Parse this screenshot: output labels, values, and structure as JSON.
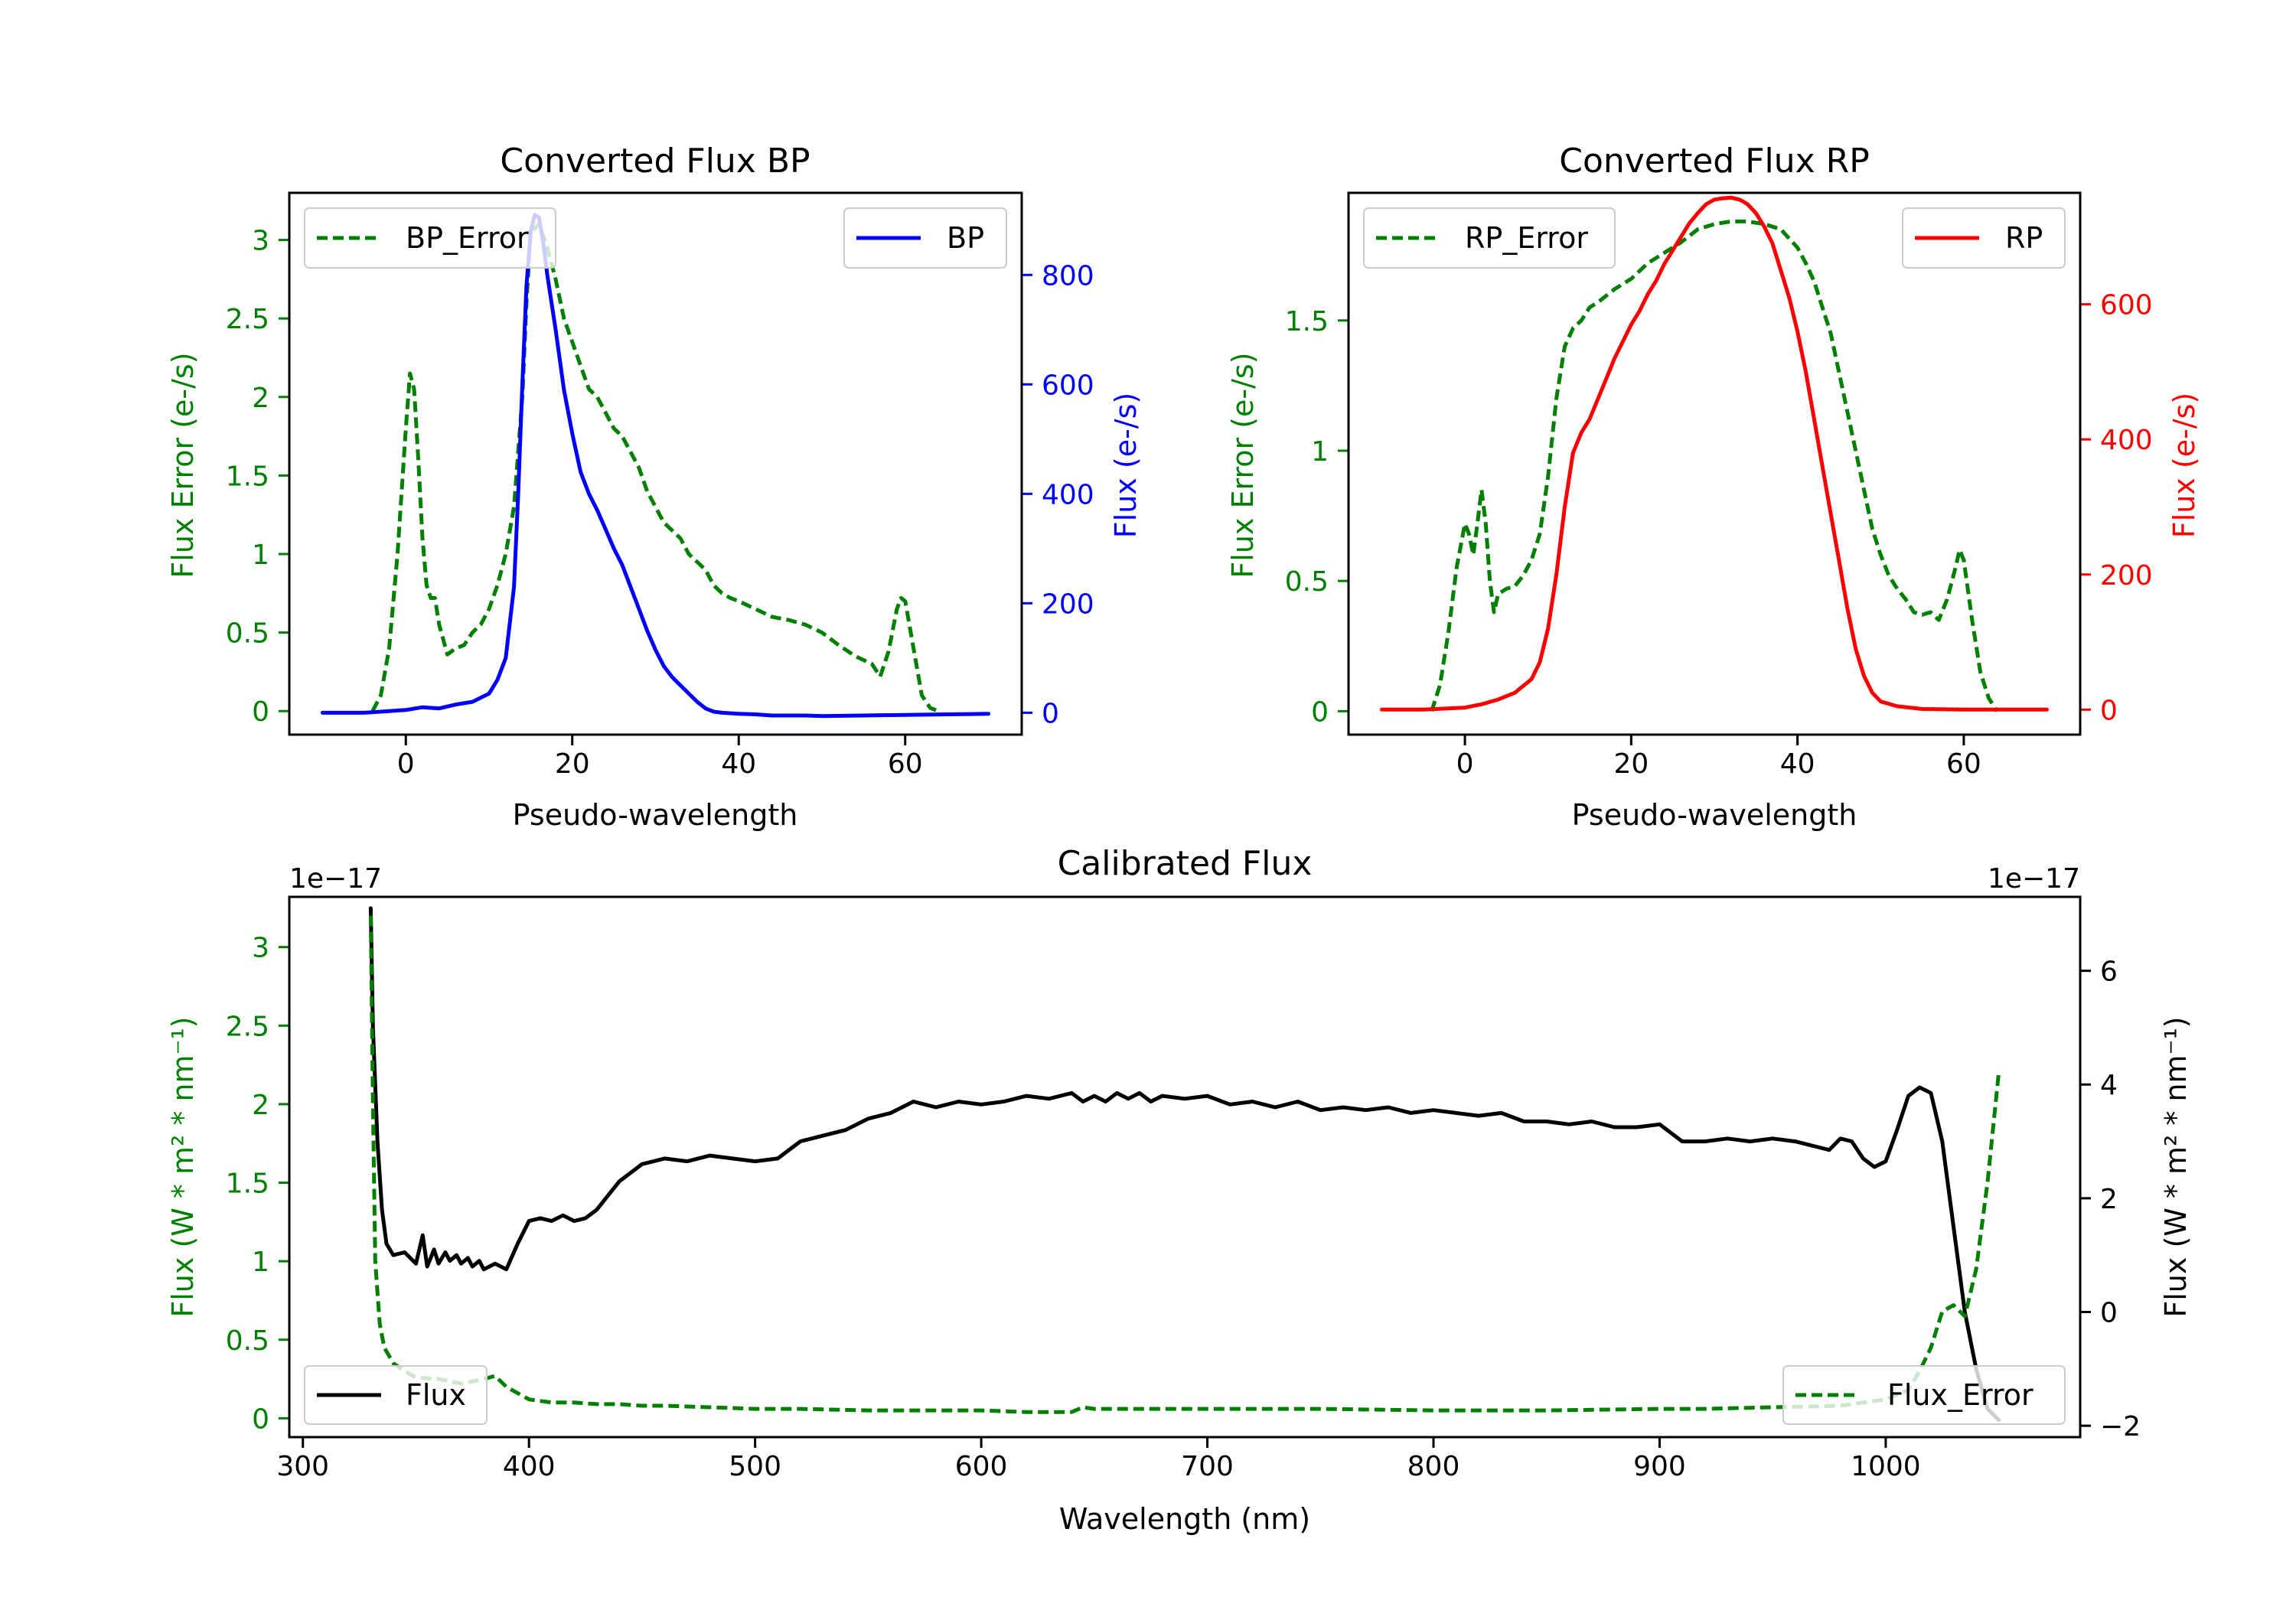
{
  "chart_data": [
    {
      "type": "line",
      "title": "Converted Flux BP",
      "xlabel": "Pseudo-wavelength",
      "ylabel": "Flux Error (e-/s)",
      "y2label": "Flux (e-/s)",
      "xlim": [
        -14,
        74
      ],
      "ylim": [
        -0.15,
        3.3
      ],
      "y2lim": [
        -40,
        950
      ],
      "xticks": [
        0,
        20,
        40,
        60
      ],
      "yticks": [
        0.0,
        0.5,
        1.0,
        1.5,
        2.0,
        2.5,
        3.0
      ],
      "y2ticks": [
        0,
        200,
        400,
        600,
        800
      ],
      "series": [
        {
          "name": "BP_Error",
          "axis": "left",
          "color": "#008000",
          "style": "dashed",
          "x": [
            -4,
            -3,
            -2,
            -1,
            0,
            0.5,
            1,
            1.5,
            2,
            2.5,
            3,
            3.5,
            4,
            5,
            6,
            7,
            8,
            9,
            10,
            11,
            12,
            13,
            14,
            14.5,
            15,
            16,
            17,
            18,
            19,
            20,
            21,
            22,
            23,
            24,
            25,
            26,
            27,
            28,
            29,
            30,
            31,
            32,
            33,
            34,
            35,
            36,
            37,
            38,
            39,
            40,
            42,
            44,
            46,
            48,
            50,
            52,
            54,
            56,
            57,
            58,
            59,
            59.5,
            60,
            61,
            62,
            63,
            64
          ],
          "y": [
            0.0,
            0.1,
            0.4,
            1.0,
            1.8,
            2.15,
            2.05,
            1.6,
            1.1,
            0.8,
            0.72,
            0.72,
            0.55,
            0.36,
            0.4,
            0.42,
            0.5,
            0.55,
            0.65,
            0.8,
            1.0,
            1.3,
            2.0,
            2.6,
            3.05,
            3.1,
            2.95,
            2.75,
            2.5,
            2.35,
            2.2,
            2.05,
            2.0,
            1.9,
            1.8,
            1.75,
            1.65,
            1.55,
            1.4,
            1.3,
            1.2,
            1.15,
            1.1,
            1.0,
            0.95,
            0.9,
            0.8,
            0.75,
            0.72,
            0.7,
            0.65,
            0.6,
            0.58,
            0.55,
            0.5,
            0.42,
            0.35,
            0.3,
            0.22,
            0.38,
            0.65,
            0.72,
            0.7,
            0.4,
            0.1,
            0.02,
            0.0
          ]
        },
        {
          "name": "BP",
          "axis": "right",
          "color": "#0000ff",
          "style": "solid",
          "x": [
            -10,
            -5,
            0,
            2,
            4,
            6,
            8,
            10,
            11,
            12,
            13,
            13.5,
            14,
            14.5,
            15,
            15.5,
            16,
            16.5,
            17,
            18,
            19,
            20,
            21,
            22,
            23,
            24,
            25,
            26,
            27,
            28,
            29,
            30,
            31,
            32,
            33,
            34,
            35,
            36,
            37,
            38,
            40,
            42,
            44,
            46,
            48,
            50,
            55,
            60,
            65,
            70
          ],
          "y": [
            0,
            0,
            5,
            10,
            8,
            15,
            20,
            35,
            60,
            100,
            230,
            400,
            600,
            780,
            880,
            910,
            905,
            860,
            800,
            700,
            590,
            510,
            440,
            400,
            370,
            335,
            300,
            270,
            230,
            190,
            150,
            115,
            85,
            65,
            50,
            35,
            20,
            8,
            2,
            0,
            -2,
            -3,
            -5,
            -5,
            -5,
            -6,
            -5,
            -4,
            -3,
            -2
          ]
        }
      ]
    },
    {
      "type": "line",
      "title": "Converted Flux RP",
      "xlabel": "Pseudo-wavelength",
      "ylabel": "Flux Error (e-/s)",
      "y2label": "Flux (e-/s)",
      "xlim": [
        -14,
        74
      ],
      "ylim": [
        -0.09,
        1.99
      ],
      "y2lim": [
        -37,
        765
      ],
      "xticks": [
        0,
        20,
        40,
        60
      ],
      "yticks": [
        0.0,
        0.5,
        1.0,
        1.5
      ],
      "y2ticks": [
        0,
        200,
        400,
        600
      ],
      "series": [
        {
          "name": "RP_Error",
          "axis": "left",
          "color": "#008000",
          "style": "dashed",
          "x": [
            -4,
            -3,
            -2,
            -1,
            0,
            0.5,
            1,
            1.5,
            2,
            2.5,
            3,
            3.5,
            4,
            5,
            6,
            7,
            8,
            9,
            10,
            11,
            12,
            13,
            14,
            15,
            16,
            18,
            20,
            22,
            24,
            26,
            28,
            30,
            32,
            34,
            36,
            38,
            40,
            41,
            42,
            43,
            44,
            45,
            46,
            47,
            48,
            49,
            50,
            51,
            52,
            53,
            54,
            55,
            56,
            57,
            58,
            59,
            59.5,
            60,
            61,
            62,
            63,
            64
          ],
          "y": [
            0.0,
            0.1,
            0.3,
            0.55,
            0.72,
            0.68,
            0.6,
            0.72,
            0.85,
            0.72,
            0.5,
            0.38,
            0.45,
            0.47,
            0.48,
            0.52,
            0.58,
            0.68,
            0.9,
            1.2,
            1.4,
            1.47,
            1.5,
            1.55,
            1.57,
            1.62,
            1.66,
            1.72,
            1.76,
            1.8,
            1.85,
            1.87,
            1.88,
            1.88,
            1.87,
            1.85,
            1.78,
            1.72,
            1.65,
            1.55,
            1.45,
            1.3,
            1.15,
            1.0,
            0.85,
            0.7,
            0.6,
            0.52,
            0.47,
            0.43,
            0.38,
            0.37,
            0.38,
            0.35,
            0.43,
            0.55,
            0.62,
            0.58,
            0.35,
            0.15,
            0.05,
            0.0
          ]
        },
        {
          "name": "RP",
          "axis": "right",
          "color": "#ff0000",
          "style": "solid",
          "x": [
            -10,
            -5,
            0,
            2,
            4,
            6,
            8,
            9,
            10,
            11,
            12,
            13,
            14,
            15,
            16,
            17,
            18,
            19,
            20,
            21,
            22,
            23,
            24,
            25,
            26,
            27,
            28,
            29,
            30,
            31,
            32,
            33,
            33.5,
            34,
            35,
            36,
            37,
            38,
            39,
            40,
            41,
            42,
            43,
            44,
            45,
            46,
            47,
            48,
            49,
            50,
            52,
            55,
            60,
            65,
            70
          ],
          "y": [
            0,
            0,
            3,
            8,
            15,
            25,
            45,
            70,
            120,
            200,
            300,
            380,
            410,
            430,
            460,
            490,
            520,
            545,
            570,
            590,
            615,
            635,
            660,
            680,
            700,
            720,
            735,
            748,
            755,
            757,
            758,
            755,
            752,
            748,
            735,
            715,
            690,
            650,
            610,
            560,
            500,
            430,
            360,
            290,
            220,
            150,
            90,
            50,
            25,
            12,
            5,
            1,
            0,
            0,
            0
          ]
        }
      ]
    },
    {
      "type": "line",
      "title": "Calibrated Flux",
      "xlabel": "Wavelength (nm)",
      "ylabel": "Flux (W * m² * nm⁻¹)",
      "y2label": "Flux (W * m² * nm⁻¹)",
      "offset_left": "1e−17",
      "offset_right": "1e−17",
      "xlim": [
        294,
        1086
      ],
      "ylim": [
        -0.12,
        3.32
      ],
      "y2lim": [
        -2.2,
        7.3
      ],
      "xticks": [
        300,
        400,
        500,
        600,
        700,
        800,
        900,
        1000
      ],
      "yticks": [
        0.0,
        0.5,
        1.0,
        1.5,
        2.0,
        2.5,
        3.0
      ],
      "y2ticks": [
        -2,
        0,
        2,
        4,
        6
      ],
      "series": [
        {
          "name": "Flux",
          "axis": "right",
          "color": "#000000",
          "style": "solid",
          "x": [
            330,
            331,
            333,
            335,
            337,
            340,
            345,
            350,
            353,
            355,
            358,
            360,
            363,
            365,
            368,
            370,
            373,
            375,
            378,
            380,
            385,
            390,
            395,
            400,
            405,
            410,
            415,
            420,
            425,
            430,
            440,
            450,
            460,
            470,
            480,
            490,
            500,
            510,
            520,
            530,
            540,
            550,
            560,
            570,
            580,
            590,
            600,
            610,
            620,
            630,
            640,
            645,
            650,
            655,
            660,
            665,
            670,
            675,
            680,
            690,
            700,
            710,
            720,
            730,
            740,
            750,
            760,
            770,
            780,
            790,
            800,
            810,
            820,
            830,
            840,
            850,
            860,
            870,
            880,
            890,
            900,
            910,
            920,
            930,
            940,
            950,
            960,
            970,
            975,
            980,
            985,
            990,
            995,
            1000,
            1005,
            1010,
            1015,
            1020,
            1025,
            1030,
            1035,
            1040,
            1045,
            1050
          ],
          "y": [
            7.1,
            5.0,
            3.0,
            1.8,
            1.2,
            1.0,
            1.05,
            0.85,
            1.35,
            0.8,
            1.1,
            0.85,
            1.05,
            0.9,
            1.0,
            0.85,
            0.95,
            0.8,
            0.9,
            0.75,
            0.85,
            0.75,
            1.2,
            1.6,
            1.65,
            1.6,
            1.7,
            1.6,
            1.65,
            1.8,
            2.3,
            2.6,
            2.7,
            2.65,
            2.75,
            2.7,
            2.65,
            2.7,
            3.0,
            3.1,
            3.2,
            3.4,
            3.5,
            3.7,
            3.6,
            3.7,
            3.65,
            3.7,
            3.8,
            3.75,
            3.85,
            3.7,
            3.8,
            3.7,
            3.85,
            3.75,
            3.85,
            3.7,
            3.8,
            3.75,
            3.8,
            3.65,
            3.7,
            3.6,
            3.7,
            3.55,
            3.6,
            3.55,
            3.6,
            3.5,
            3.55,
            3.5,
            3.45,
            3.5,
            3.35,
            3.35,
            3.3,
            3.35,
            3.25,
            3.25,
            3.3,
            3.0,
            3.0,
            3.05,
            3.0,
            3.05,
            3.0,
            2.9,
            2.85,
            3.05,
            3.0,
            2.7,
            2.55,
            2.65,
            3.2,
            3.8,
            3.95,
            3.85,
            3.0,
            1.5,
            0.0,
            -1.0,
            -1.7,
            -1.9
          ]
        },
        {
          "name": "Flux_Error",
          "axis": "left",
          "color": "#008000",
          "style": "dashed",
          "x": [
            330,
            331,
            332,
            334,
            336,
            340,
            345,
            350,
            360,
            370,
            380,
            385,
            390,
            400,
            410,
            420,
            430,
            440,
            450,
            460,
            480,
            500,
            520,
            550,
            580,
            600,
            620,
            640,
            645,
            650,
            700,
            750,
            800,
            850,
            900,
            920,
            950,
            980,
            1000,
            1010,
            1015,
            1020,
            1025,
            1030,
            1035,
            1040,
            1045,
            1050
          ],
          "y": [
            3.2,
            2.0,
            1.0,
            0.6,
            0.45,
            0.35,
            0.3,
            0.26,
            0.25,
            0.22,
            0.25,
            0.27,
            0.2,
            0.12,
            0.1,
            0.1,
            0.09,
            0.09,
            0.08,
            0.08,
            0.07,
            0.06,
            0.06,
            0.05,
            0.05,
            0.05,
            0.04,
            0.04,
            0.07,
            0.06,
            0.06,
            0.06,
            0.05,
            0.05,
            0.06,
            0.06,
            0.07,
            0.08,
            0.12,
            0.18,
            0.3,
            0.45,
            0.68,
            0.72,
            0.65,
            0.95,
            1.5,
            2.2
          ]
        }
      ]
    }
  ]
}
